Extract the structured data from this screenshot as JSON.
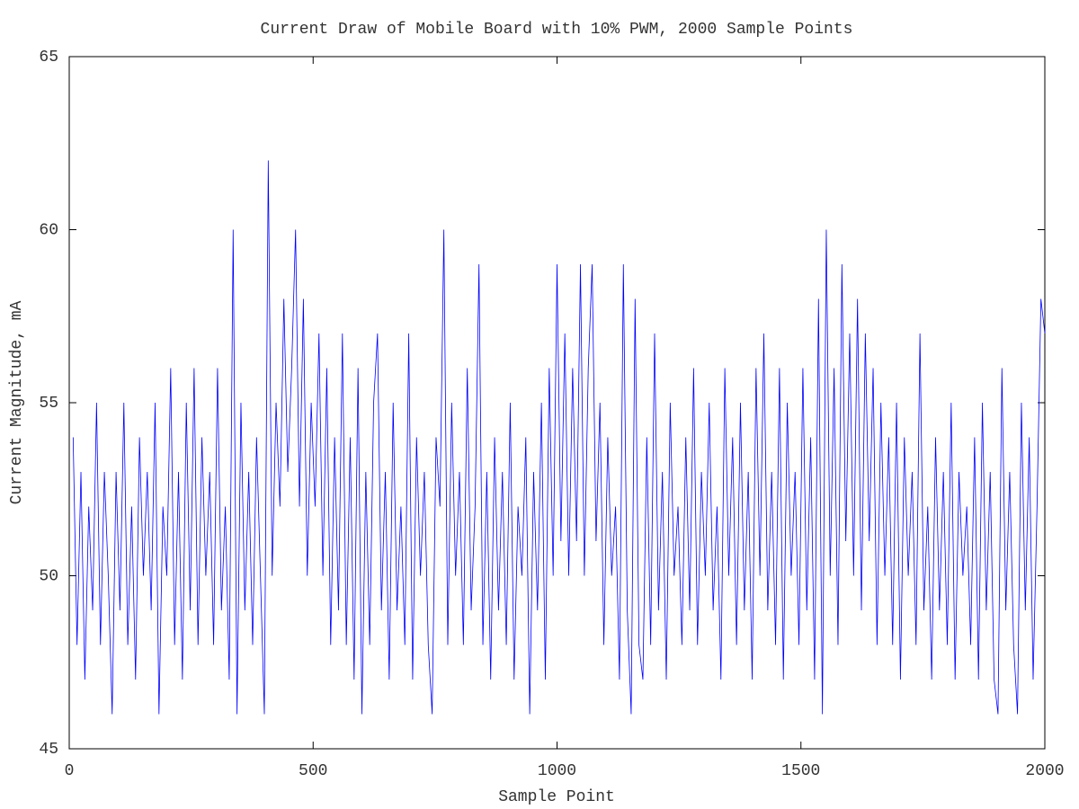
{
  "chart_data": {
    "type": "line",
    "title": "Current Draw of Mobile Board with 10% PWM, 2000 Sample Points",
    "x_label": "Sample Point",
    "y_label": "Current Magnitude, mA",
    "xlim": [
      0,
      2000
    ],
    "xticks": [
      0,
      500,
      1000,
      1500,
      2000
    ],
    "ylim": [
      45,
      65
    ],
    "yticks": [
      45,
      50,
      55,
      60,
      65
    ],
    "x": [
      8,
      16,
      24,
      32,
      40,
      48,
      56,
      64,
      72,
      80,
      88,
      96,
      104,
      112,
      120,
      128,
      136,
      144,
      152,
      160,
      168,
      176,
      184,
      192,
      200,
      208,
      216,
      224,
      232,
      240,
      248,
      256,
      264,
      272,
      280,
      288,
      296,
      304,
      312,
      320,
      328,
      336,
      344,
      352,
      360,
      368,
      376,
      384,
      392,
      400,
      408,
      416,
      424,
      432,
      440,
      448,
      456,
      464,
      472,
      480,
      488,
      496,
      504,
      512,
      520,
      528,
      536,
      544,
      552,
      560,
      568,
      576,
      584,
      592,
      600,
      608,
      616,
      624,
      632,
      640,
      648,
      656,
      664,
      672,
      680,
      688,
      696,
      704,
      712,
      720,
      728,
      736,
      744,
      752,
      760,
      768,
      776,
      784,
      792,
      800,
      808,
      816,
      824,
      832,
      840,
      848,
      856,
      864,
      872,
      880,
      888,
      896,
      904,
      912,
      920,
      928,
      936,
      944,
      952,
      960,
      968,
      976,
      984,
      992,
      1000,
      1008,
      1016,
      1024,
      1032,
      1040,
      1048,
      1056,
      1064,
      1072,
      1080,
      1088,
      1096,
      1104,
      1112,
      1120,
      1128,
      1136,
      1144,
      1152,
      1160,
      1168,
      1176,
      1184,
      1192,
      1200,
      1208,
      1216,
      1224,
      1232,
      1240,
      1248,
      1256,
      1264,
      1272,
      1280,
      1288,
      1296,
      1304,
      1312,
      1320,
      1328,
      1336,
      1344,
      1352,
      1360,
      1368,
      1376,
      1384,
      1392,
      1400,
      1408,
      1416,
      1424,
      1432,
      1440,
      1448,
      1456,
      1464,
      1472,
      1480,
      1488,
      1496,
      1504,
      1512,
      1520,
      1528,
      1536,
      1544,
      1552,
      1560,
      1568,
      1576,
      1584,
      1592,
      1600,
      1608,
      1616,
      1624,
      1632,
      1640,
      1648,
      1656,
      1664,
      1672,
      1680,
      1688,
      1696,
      1704,
      1712,
      1720,
      1728,
      1736,
      1744,
      1752,
      1760,
      1768,
      1776,
      1784,
      1792,
      1800,
      1808,
      1816,
      1824,
      1832,
      1840,
      1848,
      1856,
      1864,
      1872,
      1880,
      1888,
      1896,
      1904,
      1912,
      1920,
      1928,
      1936,
      1944,
      1952,
      1960,
      1968,
      1976,
      1984,
      1992,
      2000
    ],
    "series": [
      {
        "color": "#0000ff",
        "values": [
          54,
          48,
          53,
          47,
          52,
          49,
          55,
          48,
          53,
          50,
          46,
          53,
          49,
          55,
          48,
          52,
          47,
          54,
          50,
          53,
          49,
          55,
          46,
          52,
          50,
          56,
          48,
          53,
          47,
          55,
          49,
          56,
          48,
          54,
          50,
          53,
          48,
          56,
          49,
          52,
          47,
          60,
          46,
          55,
          49,
          53,
          48,
          54,
          50,
          46,
          62,
          50,
          55,
          52,
          58,
          53,
          56,
          60,
          52,
          58,
          50,
          55,
          52,
          57,
          50,
          56,
          48,
          54,
          49,
          57,
          48,
          54,
          47,
          56,
          46,
          53,
          48,
          55,
          57,
          49,
          53,
          47,
          55,
          49,
          52,
          48,
          57,
          47,
          54,
          50,
          53,
          48,
          46,
          54,
          52,
          60,
          48,
          55,
          50,
          53,
          48,
          56,
          49,
          52,
          59,
          48,
          53,
          47,
          54,
          49,
          53,
          48,
          55,
          47,
          52,
          50,
          54,
          46,
          53,
          49,
          55,
          47,
          56,
          50,
          59,
          51,
          57,
          50,
          56,
          51,
          59,
          50,
          56,
          59,
          51,
          55,
          48,
          54,
          50,
          52,
          47,
          59,
          49,
          46,
          58,
          48,
          47,
          54,
          48,
          57,
          49,
          53,
          47,
          55,
          50,
          52,
          48,
          54,
          49,
          56,
          48,
          53,
          50,
          55,
          49,
          52,
          47,
          56,
          50,
          54,
          48,
          55,
          49,
          53,
          47,
          56,
          50,
          57,
          49,
          53,
          48,
          56,
          47,
          55,
          50,
          53,
          48,
          56,
          49,
          54,
          47,
          58,
          46,
          60,
          50,
          56,
          48,
          59,
          51,
          57,
          50,
          58,
          49,
          57,
          51,
          56,
          48,
          55,
          50,
          54,
          48,
          55,
          47,
          54,
          50,
          53,
          48,
          57,
          49,
          52,
          47,
          54,
          49,
          53,
          48,
          55,
          47,
          53,
          50,
          52,
          48,
          54,
          47,
          55,
          49,
          53,
          47,
          46,
          56,
          49,
          53,
          48,
          46,
          55,
          49,
          54,
          47,
          52,
          58,
          57
        ]
      }
    ]
  }
}
